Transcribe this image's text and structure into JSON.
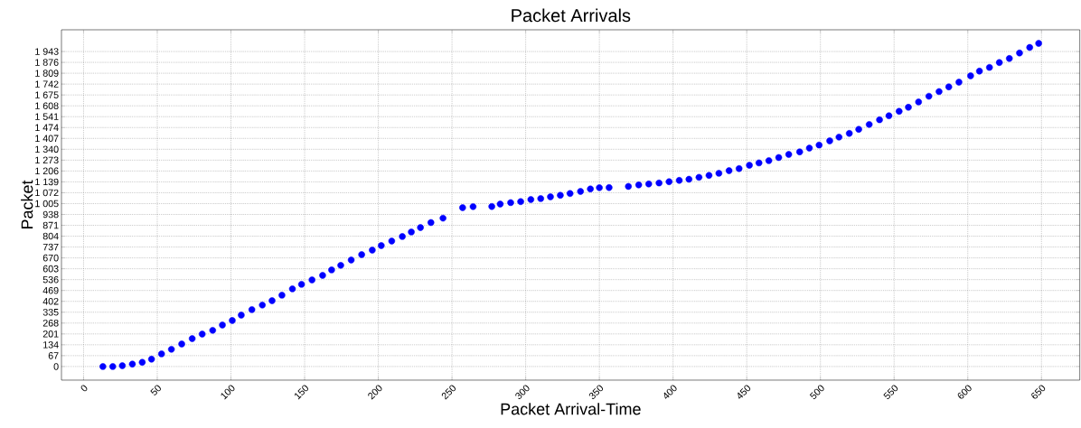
{
  "chart_data": {
    "type": "scatter",
    "title": "Packet Arrivals",
    "xlabel": "Packet Arrival-Time",
    "ylabel": "Packet",
    "x": [
      13.1,
      19.8,
      26.3,
      33.1,
      39.8,
      46.1,
      52.9,
      59.6,
      66.6,
      73.7,
      80.5,
      87.6,
      94.2,
      100.9,
      107.0,
      114.2,
      121.3,
      127.9,
      134.6,
      141.7,
      147.9,
      155.0,
      162.2,
      168.3,
      174.5,
      181.6,
      188.7,
      195.9,
      202.0,
      209.1,
      216.3,
      222.4,
      228.6,
      235.7,
      243.9,
      257.2,
      264.3,
      277.0,
      282.7,
      289.8,
      296.6,
      303.5,
      310.2,
      316.8,
      323.5,
      330.1,
      337.2,
      343.9,
      350.0,
      356.6,
      369.7,
      376.7,
      383.5,
      390.5,
      397.3,
      404.2,
      410.8,
      417.6,
      424.4,
      431.1,
      438.0,
      444.8,
      451.8,
      458.3,
      465.0,
      471.7,
      478.5,
      485.9,
      492.5,
      499.1,
      506.3,
      512.6,
      519.6,
      526.0,
      533.1,
      540.1,
      546.5,
      553.4,
      559.7,
      566.6,
      573.6,
      580.5,
      587.1,
      594.0,
      601.9,
      607.9,
      614.7,
      621.4,
      628.2,
      635.1,
      642.0,
      648.1
    ],
    "values": [
      0,
      0,
      5,
      15,
      26,
      45,
      78,
      106,
      139,
      172,
      200,
      223,
      256,
      284,
      317,
      351,
      379,
      406,
      440,
      479,
      507,
      534,
      562,
      596,
      624,
      657,
      690,
      718,
      746,
      774,
      802,
      830,
      857,
      888,
      915,
      980,
      986,
      987,
      1002,
      1011,
      1017,
      1030,
      1036,
      1047,
      1056,
      1067,
      1080,
      1095,
      1103,
      1104,
      1111,
      1120,
      1126,
      1132,
      1140,
      1148,
      1155,
      1167,
      1179,
      1192,
      1208,
      1221,
      1241,
      1256,
      1270,
      1289,
      1308,
      1324,
      1347,
      1366,
      1392,
      1415,
      1438,
      1463,
      1493,
      1522,
      1547,
      1574,
      1599,
      1632,
      1667,
      1696,
      1725,
      1754,
      1793,
      1822,
      1845,
      1875,
      1900,
      1934,
      1968,
      1993
    ],
    "color": "#0000ff",
    "marker": "circle",
    "grid": true,
    "xlim": [
      -15,
      676
    ],
    "ylim": [
      -84,
      2077
    ],
    "xticks": [
      0,
      50,
      100,
      150,
      200,
      250,
      300,
      350,
      400,
      450,
      500,
      550,
      600,
      650
    ],
    "yticks": [
      0,
      67,
      134,
      201,
      268,
      335,
      402,
      469,
      536,
      603,
      670,
      737,
      804,
      871,
      938,
      {
        "value": 1005,
        "label": "1 005"
      },
      {
        "value": 1072,
        "label": "1 072"
      },
      {
        "value": 1139,
        "label": "1 139"
      },
      {
        "value": 1206,
        "label": "1 206"
      },
      {
        "value": 1273,
        "label": "1 273"
      },
      {
        "value": 1340,
        "label": "1 340"
      },
      {
        "value": 1407,
        "label": "1 407"
      },
      {
        "value": 1474,
        "label": "1 474"
      },
      {
        "value": 1541,
        "label": "1 541"
      },
      {
        "value": 1608,
        "label": "1 608"
      },
      {
        "value": 1675,
        "label": "1 675"
      },
      {
        "value": 1742,
        "label": "1 742"
      },
      {
        "value": 1809,
        "label": "1 809"
      },
      {
        "value": 1876,
        "label": "1 876"
      },
      {
        "value": 1943,
        "label": "1 943"
      }
    ]
  }
}
